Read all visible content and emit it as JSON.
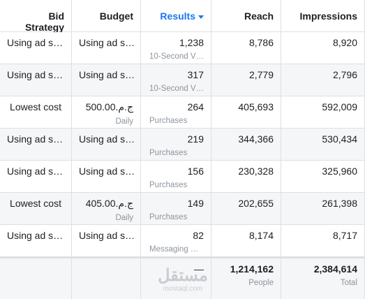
{
  "header": {
    "columns": [
      "Bid Strategy",
      "Budget",
      "Results",
      "Reach",
      "Impressions"
    ]
  },
  "rows": [
    {
      "bid_strategy": "Using ad s…",
      "budget": "Using ad s…",
      "result": "1,238",
      "result_type": "10-Second V…",
      "reach": "8,786",
      "impressions": "8,920"
    },
    {
      "bid_strategy": "Using ad s…",
      "budget": "Using ad s…",
      "result": "317",
      "result_type": "10-Second V…",
      "reach": "2,779",
      "impressions": "2,796"
    },
    {
      "bid_strategy": "Lowest cost",
      "budget": "ج.م.500.00",
      "budget_type": "Daily",
      "result": "264",
      "result_type": "Purchases",
      "reach": "405,693",
      "impressions": "592,009"
    },
    {
      "bid_strategy": "Using ad s…",
      "budget": "Using ad s…",
      "result": "219",
      "result_type": "Purchases",
      "reach": "344,366",
      "impressions": "530,434"
    },
    {
      "bid_strategy": "Using ad s…",
      "budget": "Using ad s…",
      "result": "156",
      "result_type": "Purchases",
      "reach": "230,328",
      "impressions": "325,960"
    },
    {
      "bid_strategy": "Lowest cost",
      "budget": "ج.م.405.00",
      "budget_type": "Daily",
      "result": "149",
      "result_type": "Purchases",
      "reach": "202,655",
      "impressions": "261,398"
    },
    {
      "bid_strategy": "Using ad s…",
      "budget": "Using ad s…",
      "result": "82",
      "result_type": "Messaging …",
      "reach": "8,174",
      "impressions": "8,717"
    }
  ],
  "footer": {
    "result": "—",
    "reach": "1,214,162",
    "reach_label": "People",
    "impressions": "2,384,614",
    "impressions_label": "Total"
  },
  "watermark": {
    "logo": "مستقل",
    "site": "mostaql.com"
  }
}
